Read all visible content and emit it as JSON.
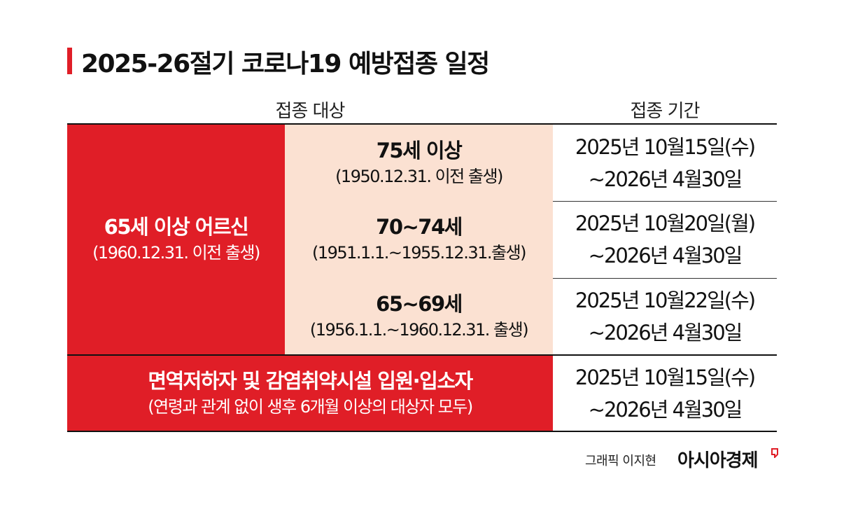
{
  "title": "2025-26절기 코로나19 예방접종 일정",
  "headers": {
    "target": "접종 대상",
    "period": "접종 기간"
  },
  "groups": {
    "elderly": {
      "label": "65세 이상 어르신",
      "sub": "(1960.12.31. 이전 출생)"
    },
    "immuno": {
      "label": "면역저하자 및 감염취약시설 입원·입소자",
      "sub": "(연령과 관계 없이 생후 6개월 이상의 대상자 모두)"
    }
  },
  "rows": [
    {
      "age": "75세 이상",
      "birth": "(1950.12.31. 이전 출생)",
      "period_start": "2025년 10월15일(수)",
      "period_end": "~2026년 4월30일"
    },
    {
      "age": "70~74세",
      "birth": "(1951.1.1.~1955.12.31.출생)",
      "period_start": "2025년 10월20일(월)",
      "period_end": "~2026년 4월30일"
    },
    {
      "age": "65~69세",
      "birth": "(1956.1.1.~1960.12.31. 출생)",
      "period_start": "2025년 10월22일(수)",
      "period_end": "~2026년 4월30일"
    }
  ],
  "immuno_period": {
    "start": "2025년 10월15일(수)",
    "end": "~2026년 4월30일"
  },
  "footer": {
    "credit": "그래픽 이지현",
    "brand": "아시아경제"
  },
  "colors": {
    "accent_red": "#e01e27",
    "peach": "#fbe1d2"
  }
}
